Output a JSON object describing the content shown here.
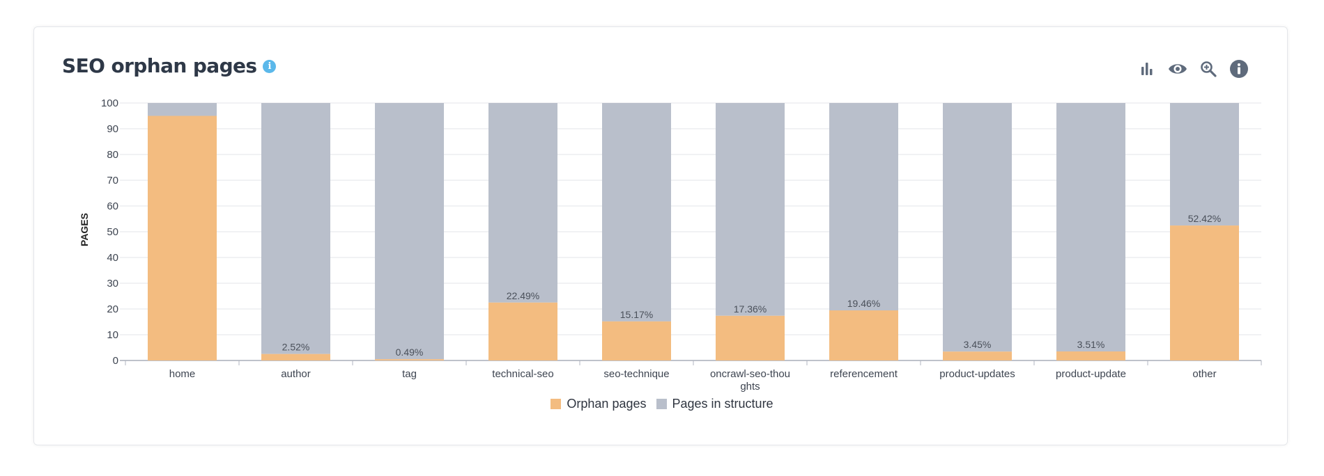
{
  "header": {
    "title": "SEO orphan pages",
    "info_glyph": "i"
  },
  "toolbar": {
    "icons": [
      "bar-chart-icon",
      "eye-icon",
      "zoom-in-icon",
      "info-icon"
    ]
  },
  "colors": {
    "orphan": "#f3bc80",
    "structure": "#b9bfcb",
    "accent": "#5bb8ea"
  },
  "chart_data": {
    "type": "bar",
    "stacked": true,
    "ylabel": "PAGES",
    "ylim": [
      0,
      100
    ],
    "yticks": [
      0,
      10,
      20,
      30,
      40,
      50,
      60,
      70,
      80,
      90,
      100
    ],
    "grid": true,
    "legend_position": "bottom",
    "categories": [
      "home",
      "author",
      "tag",
      "technical-seo",
      "seo-technique",
      "oncrawl-seo-thoughts",
      "referencement",
      "product-updates",
      "product-update",
      "other"
    ],
    "category_display": [
      [
        "home"
      ],
      [
        "author"
      ],
      [
        "tag"
      ],
      [
        "technical-seo"
      ],
      [
        "seo-technique"
      ],
      [
        "oncrawl-seo-thou",
        "ghts"
      ],
      [
        "referencement"
      ],
      [
        "product-updates"
      ],
      [
        "product-update"
      ],
      [
        "other"
      ]
    ],
    "series": [
      {
        "name": "Orphan pages",
        "values": [
          95,
          2.52,
          0.49,
          22.49,
          15.17,
          17.36,
          19.46,
          3.45,
          3.51,
          52.42
        ],
        "labels": [
          "",
          "2.52%",
          "0.49%",
          "22.49%",
          "15.17%",
          "17.36%",
          "19.46%",
          "3.45%",
          "3.51%",
          "52.42%"
        ]
      },
      {
        "name": "Pages in structure",
        "values": [
          5,
          97.48,
          99.51,
          77.51,
          84.83,
          82.64,
          80.54,
          96.55,
          96.49,
          47.58
        ]
      }
    ]
  }
}
